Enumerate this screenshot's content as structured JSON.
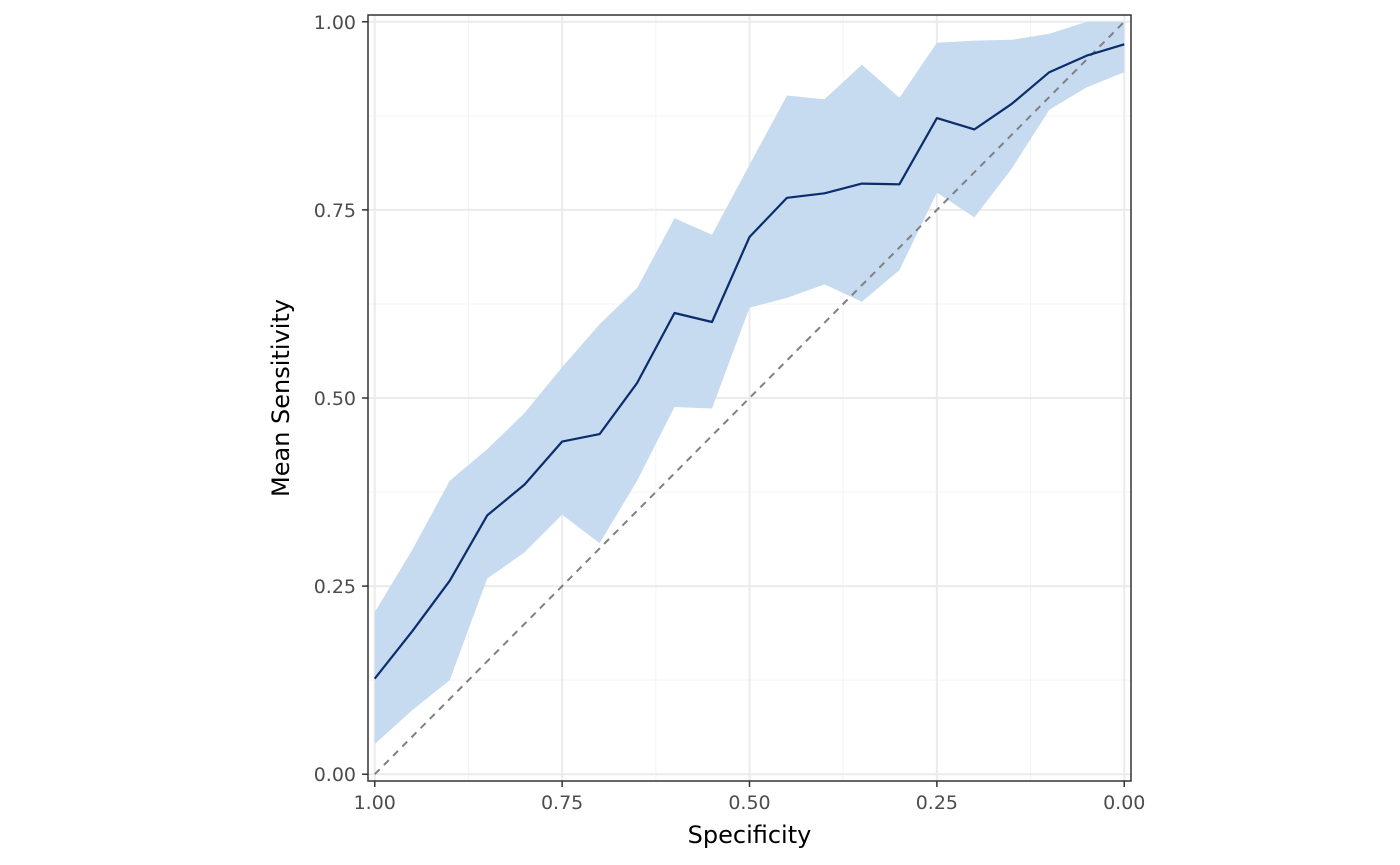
{
  "chart_data": {
    "type": "line",
    "title": "",
    "xlabel": "Specificity",
    "ylabel": "Mean Sensitivity",
    "x_reversed": true,
    "xlim": [
      0,
      1
    ],
    "ylim": [
      0,
      1
    ],
    "xticks": [
      1.0,
      0.75,
      0.5,
      0.25,
      0.0
    ],
    "xtick_labels": [
      "1.00",
      "0.75",
      "0.50",
      "0.25",
      "0.00"
    ],
    "yticks": [
      0.0,
      0.25,
      0.5,
      0.75,
      1.0
    ],
    "ytick_labels": [
      "0.00",
      "0.25",
      "0.50",
      "0.75",
      "1.00"
    ],
    "grid": true,
    "legend": "none",
    "reference_line": {
      "from": [
        1,
        0
      ],
      "to": [
        0,
        1
      ],
      "style": "dashed",
      "color": "#808080"
    },
    "x": [
      1.0,
      0.95,
      0.9,
      0.85,
      0.8,
      0.75,
      0.7,
      0.65,
      0.6,
      0.55,
      0.5,
      0.45,
      0.4,
      0.35,
      0.3,
      0.25,
      0.2,
      0.15,
      0.1,
      0.05,
      0.0
    ],
    "series": [
      {
        "values": [
          0.127,
          0.19,
          0.257,
          0.344,
          0.385,
          0.442,
          0.452,
          0.52,
          0.613,
          0.601,
          0.714,
          0.766,
          0.772,
          0.785,
          0.784,
          0.872,
          0.857,
          0.891,
          0.933,
          0.955,
          0.97
        ],
        "lower": [
          0.04,
          0.085,
          0.125,
          0.26,
          0.295,
          0.345,
          0.307,
          0.39,
          0.488,
          0.486,
          0.62,
          0.633,
          0.651,
          0.628,
          0.67,
          0.773,
          0.74,
          0.805,
          0.883,
          0.913,
          0.933
        ],
        "upper": [
          0.215,
          0.298,
          0.39,
          0.432,
          0.48,
          0.541,
          0.598,
          0.646,
          0.739,
          0.717,
          0.81,
          0.902,
          0.897,
          0.943,
          0.899,
          0.972,
          0.975,
          0.976,
          0.984,
          1.0,
          1.0
        ]
      }
    ],
    "colors": {
      "line": "#0b2d6b",
      "ribbon": "#c6daf0",
      "grid_major": "#ebebeb",
      "grid_minor": "#f3f3f3",
      "panel_border": "#333333",
      "reference_line": "#808080"
    }
  }
}
